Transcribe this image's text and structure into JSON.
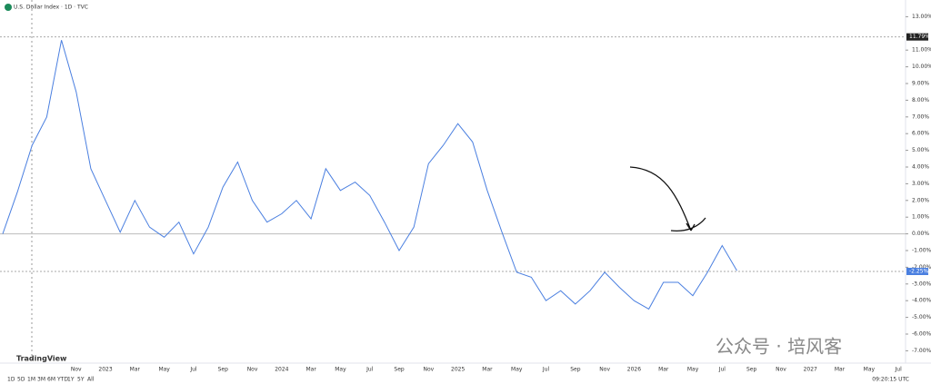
{
  "chart_data": {
    "type": "line",
    "title": "U.S. Dollar Index · 1D · TVC",
    "categories": [
      null,
      null,
      null,
      null,
      null,
      "Nov",
      null,
      "2023",
      null,
      "Mar",
      null,
      "May",
      null,
      "Jul",
      null,
      "Sep",
      null,
      "Nov",
      null,
      "2024",
      null,
      "Mar",
      null,
      "May",
      null,
      "Jul",
      null,
      "Sep",
      null,
      "Nov",
      null,
      "2025",
      null,
      "Mar",
      null,
      "May",
      null,
      "Jul",
      null,
      "Sep",
      null,
      "Nov",
      null,
      "2026",
      null,
      "Mar",
      null,
      "May",
      null,
      "Jul",
      null,
      "Sep",
      null,
      "Nov",
      null,
      "2027",
      null,
      "Mar",
      null,
      "May",
      null,
      "Jul"
    ],
    "series": [
      {
        "name": "U.S. Dollar Index",
        "color": "#4a7fe0",
        "values": [
          0.0,
          2.5,
          5.3,
          7.0,
          11.6,
          8.5,
          3.9,
          2.0,
          0.1,
          2.0,
          0.4,
          -0.2,
          0.7,
          -1.2,
          0.4,
          2.8,
          4.3,
          2.0,
          0.7,
          1.2,
          2.0,
          0.9,
          3.9,
          2.6,
          3.1,
          2.3,
          0.7,
          -1.0,
          0.4,
          4.2,
          5.3,
          6.6,
          5.5,
          2.6,
          0.1,
          -2.3,
          -2.6,
          -4.0,
          -3.4,
          -4.2,
          -3.4,
          -2.3,
          -3.2,
          -4.0,
          -4.5,
          -2.9,
          -2.9,
          -3.7,
          -2.3,
          -0.7,
          -2.2,
          null,
          null,
          null,
          null,
          null,
          null,
          null,
          null,
          null,
          null,
          null
        ]
      }
    ],
    "ylim": [
      -7.5,
      14
    ],
    "yticks": [
      {
        "value": -7,
        "label": "-7.00%"
      },
      {
        "value": -6,
        "label": "-6.00%"
      },
      {
        "value": -5,
        "label": "-5.00%"
      },
      {
        "value": -4,
        "label": "-4.00%"
      },
      {
        "value": -3,
        "label": "-3.00%"
      },
      {
        "value": -2,
        "label": "-2.00%"
      },
      {
        "value": -1,
        "label": "-1.00%"
      },
      {
        "value": 0,
        "label": "0.00%"
      },
      {
        "value": 1,
        "label": "1.00%"
      },
      {
        "value": 2,
        "label": "2.00%"
      },
      {
        "value": 3,
        "label": "3.00%"
      },
      {
        "value": 4,
        "label": "4.00%"
      },
      {
        "value": 5,
        "label": "5.00%"
      },
      {
        "value": 6,
        "label": "6.00%"
      },
      {
        "value": 7,
        "label": "7.00%"
      },
      {
        "value": 8,
        "label": "8.00%"
      },
      {
        "value": 9,
        "label": "9.00%"
      },
      {
        "value": 10,
        "label": "10.00%"
      },
      {
        "value": 11,
        "label": "11.00%"
      },
      {
        "value": 13,
        "label": "13.00%"
      }
    ],
    "reference_lines": [
      {
        "value": 11.79,
        "label": "11.79%"
      },
      {
        "value": -2.25,
        "label": "-2.25%"
      }
    ],
    "grid": false
  },
  "logo": "TradingView",
  "watermark": "公众号 · 培风客",
  "toolbar": {
    "ranges": [
      "1D",
      "5D",
      "1M",
      "3M",
      "6M",
      "YTD",
      "1Y",
      "5Y",
      "All"
    ],
    "time": "09:20:15 UTC"
  }
}
